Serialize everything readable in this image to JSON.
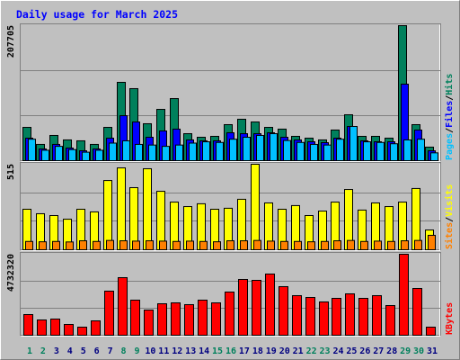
{
  "chart_data": {
    "type": "bar",
    "title": "Daily usage for March 2025",
    "categories": [
      "1",
      "2",
      "3",
      "4",
      "5",
      "6",
      "7",
      "8",
      "9",
      "10",
      "11",
      "12",
      "13",
      "14",
      "15",
      "16",
      "17",
      "18",
      "19",
      "20",
      "21",
      "22",
      "23",
      "24",
      "25",
      "26",
      "27",
      "28",
      "29",
      "30",
      "31"
    ],
    "category_colors": [
      "#00805c",
      "#00805c",
      "#000080",
      "#000080",
      "#000080",
      "#000080",
      "#000080",
      "#00805c",
      "#00805c",
      "#000080",
      "#000080",
      "#000080",
      "#000080",
      "#000080",
      "#00805c",
      "#00805c",
      "#000080",
      "#000080",
      "#000080",
      "#000080",
      "#000080",
      "#00805c",
      "#00805c",
      "#000080",
      "#000080",
      "#000080",
      "#000080",
      "#000080",
      "#00805c",
      "#00805c",
      "#000080"
    ],
    "legend_separator": "/",
    "panels": [
      {
        "ylim": [
          0,
          207705
        ],
        "yticks": [
          207705
        ],
        "series": [
          {
            "name": "Hits",
            "color": "#00805c",
            "values": [
              51200,
              25000,
              38800,
              31900,
              30500,
              25000,
              51200,
              120500,
              110800,
              56800,
              78900,
              95500,
              41500,
              36000,
              37400,
              55400,
              63700,
              59500,
              51200,
              48500,
              37400,
              34600,
              31900,
              47100,
              70600,
              37400,
              37400,
              34600,
              207705,
              55400,
              20800
            ]
          },
          {
            "name": "Files",
            "color": "#0000ff",
            "values": [
              34600,
              18000,
              25000,
              19400,
              15200,
              18000,
              34600,
              69200,
              59500,
              36000,
              45700,
              48500,
              31900,
              30500,
              30500,
              42900,
              41500,
              41500,
              42900,
              36000,
              31900,
              29100,
              27700,
              34600,
              52600,
              30500,
              29100,
              29100,
              117700,
              47100,
              15200
            ]
          },
          {
            "name": "Pages",
            "color": "#00c0ff",
            "values": [
              33000,
              16000,
              22000,
              17000,
              13000,
              16000,
              27000,
              30500,
              25000,
              24000,
              22000,
              24000,
              27000,
              29000,
              28000,
              33000,
              36000,
              38800,
              41500,
              31000,
              28000,
              25000,
              24000,
              33000,
              52600,
              29000,
              28000,
              26000,
              31900,
              33000,
              12000
            ]
          }
        ]
      },
      {
        "ylim": [
          0,
          515
        ],
        "yticks": [
          515
        ],
        "series": [
          {
            "name": "Visits",
            "color": "#ffff00",
            "values": [
              244,
              217,
              206,
              184,
              244,
              228,
              417,
              493,
              374,
              488,
              352,
              287,
              260,
              277,
              244,
              250,
              304,
              515,
              282,
              244,
              266,
              206,
              233,
              287,
              363,
              239,
              282,
              260,
              287,
              369,
              119
            ]
          },
          {
            "name": "Sites",
            "color": "#ff8000",
            "values": [
              50,
              48,
              50,
              47,
              54,
              50,
              56,
              54,
              52,
              54,
              52,
              50,
              52,
              50,
              48,
              54,
              54,
              56,
              52,
              50,
              50,
              48,
              50,
              54,
              56,
              50,
              52,
              50,
              54,
              56,
              87
            ]
          }
        ]
      },
      {
        "ylim": [
          0,
          4732320
        ],
        "yticks": [
          4732320
        ],
        "series": [
          {
            "name": "KBytes",
            "color": "#ff0000",
            "values": [
              1209000,
              894000,
              946000,
              631000,
              473000,
              841000,
              2577000,
              3365000,
              2051000,
              1472000,
              1840000,
              1893000,
              1788000,
              2051000,
              1893000,
              2524000,
              3260000,
              3208000,
              3576000,
              2840000,
              2314000,
              2208000,
              1946000,
              2156000,
              2419000,
              2156000,
              2314000,
              1735000,
              4732320,
              2734000,
              473000
            ]
          }
        ]
      }
    ]
  }
}
